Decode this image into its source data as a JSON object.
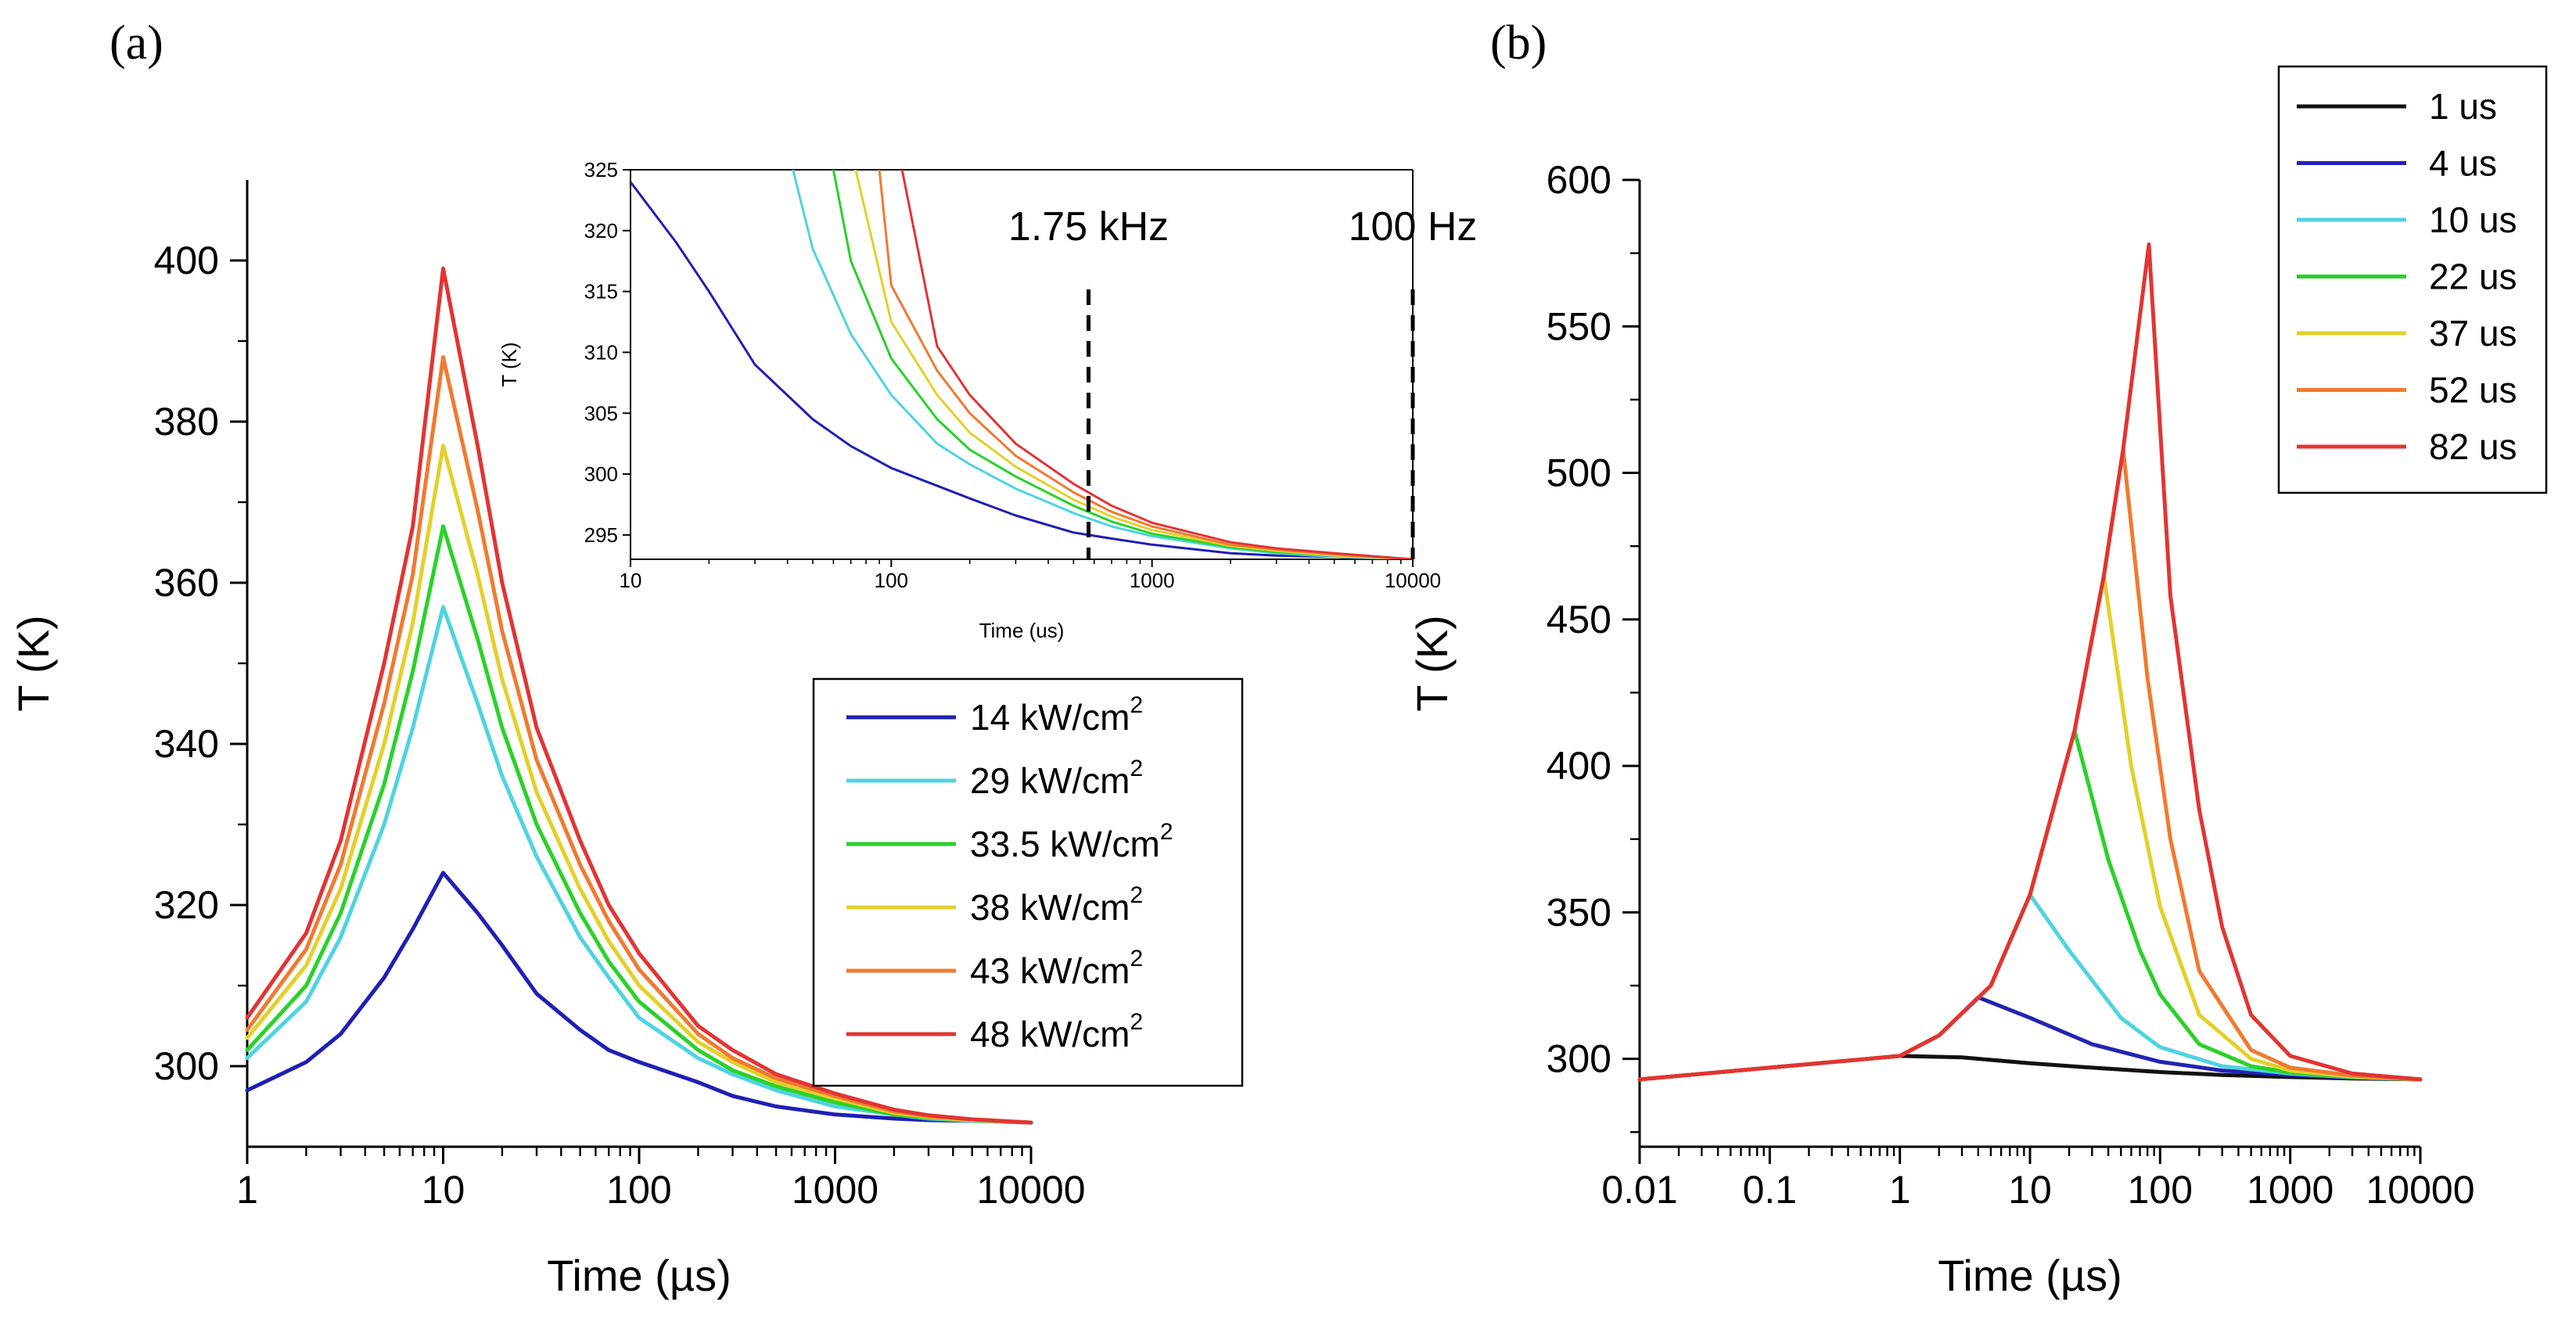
{
  "figure": {
    "panels": [
      "(a)",
      "(b)"
    ]
  },
  "chart_data": [
    {
      "type": "line",
      "panel": "(a)",
      "title": "",
      "xlabel": "Time (µs)",
      "ylabel": "T (K)",
      "xscale": "log",
      "xlim": [
        1,
        10000
      ],
      "ylim": [
        290,
        410
      ],
      "xticks": [
        1,
        10,
        100,
        1000,
        10000
      ],
      "xtick_labels": [
        "1",
        "10",
        "100",
        "1000",
        "10000"
      ],
      "yticks": [
        300,
        320,
        340,
        360,
        380,
        400
      ],
      "ytick_labels": [
        "300",
        "320",
        "340",
        "360",
        "380",
        "400"
      ],
      "legend_position": "center-right",
      "series": [
        {
          "name": "14 kW/cm²",
          "label_base": "14 kW/cm",
          "label_sup": "2",
          "color": "#1f1fb4",
          "x": [
            1,
            2,
            3,
            5,
            7,
            10,
            15,
            20,
            30,
            50,
            70,
            100,
            200,
            300,
            500,
            1000,
            2000,
            3000,
            5000,
            10000
          ],
          "y": [
            297,
            300.5,
            304,
            311,
            317,
            324,
            319,
            315,
            309,
            304.5,
            302,
            300.5,
            298,
            296.3,
            295,
            294,
            293.5,
            293.3,
            293.2,
            293
          ]
        },
        {
          "name": "29 kW/cm²",
          "label_base": "29 kW/cm",
          "label_sup": "2",
          "color": "#4fd3e0",
          "x": [
            1,
            2,
            3,
            5,
            7,
            10,
            15,
            20,
            30,
            50,
            70,
            100,
            200,
            300,
            500,
            1000,
            2000,
            3000,
            5000,
            10000
          ],
          "y": [
            301,
            308,
            316,
            330,
            342,
            357,
            345,
            336,
            326,
            316,
            311,
            306,
            301,
            299,
            297,
            295,
            294,
            293.5,
            293.2,
            293
          ]
        },
        {
          "name": "33.5 kW/cm²",
          "label_base": "33.5 kW/cm",
          "label_sup": "2",
          "color": "#2ad12a",
          "x": [
            1,
            2,
            3,
            5,
            7,
            10,
            15,
            20,
            30,
            50,
            70,
            100,
            200,
            300,
            500,
            1000,
            2000,
            3000,
            5000,
            10000
          ],
          "y": [
            302,
            310,
            319,
            335,
            349,
            367,
            353,
            342,
            330,
            319,
            313,
            308,
            302,
            299.5,
            297.5,
            295.5,
            294,
            293.6,
            293.3,
            293
          ]
        },
        {
          "name": "38 kW/cm²",
          "label_base": "38 kW/cm",
          "label_sup": "2",
          "color": "#e3d02a",
          "x": [
            1,
            2,
            3,
            5,
            7,
            10,
            15,
            20,
            30,
            50,
            70,
            100,
            200,
            300,
            500,
            1000,
            2000,
            3000,
            5000,
            10000
          ],
          "y": [
            303.5,
            312.5,
            322,
            340,
            355,
            377,
            361,
            348,
            334,
            322,
            315.5,
            310,
            303,
            300.5,
            298,
            296,
            294.2,
            293.7,
            293.3,
            293
          ]
        },
        {
          "name": "43 kW/cm²",
          "label_base": "43 kW/cm",
          "label_sup": "2",
          "color": "#f07a30",
          "x": [
            1,
            2,
            3,
            5,
            7,
            10,
            15,
            20,
            30,
            50,
            70,
            100,
            200,
            300,
            500,
            1000,
            2000,
            3000,
            5000,
            10000
          ],
          "y": [
            304.5,
            314.5,
            325,
            345,
            361,
            388,
            369,
            354,
            338,
            325,
            318,
            312,
            304,
            301,
            298.5,
            296.3,
            294.4,
            293.8,
            293.4,
            293
          ]
        },
        {
          "name": "48 kW/cm²",
          "label_base": "48 kW/cm",
          "label_sup": "2",
          "color": "#e23434",
          "x": [
            1,
            2,
            3,
            5,
            7,
            10,
            15,
            20,
            30,
            50,
            70,
            100,
            200,
            300,
            500,
            1000,
            2000,
            3000,
            5000,
            10000
          ],
          "y": [
            306,
            316.5,
            328,
            350,
            367,
            399,
            377,
            360,
            342,
            328,
            320,
            314,
            305,
            302,
            299,
            296.6,
            294.6,
            293.9,
            293.4,
            293
          ]
        }
      ]
    },
    {
      "type": "line",
      "panel": "(a) inset",
      "title": "",
      "xlabel": "Time (us)",
      "ylabel": "T (K)",
      "xscale": "log",
      "xlim": [
        10,
        10000
      ],
      "ylim": [
        293,
        325
      ],
      "xticks": [
        10,
        100,
        1000,
        10000
      ],
      "xtick_labels": [
        "10",
        "100",
        "1000",
        "10000"
      ],
      "yticks": [
        295,
        300,
        305,
        310,
        315,
        320,
        325
      ],
      "ytick_labels": [
        "295",
        "300",
        "305",
        "310",
        "315",
        "320",
        "325"
      ],
      "annotations": [
        {
          "text": "1.75 kHz",
          "x": 571
        },
        {
          "text": "100 Hz",
          "x": 10000
        }
      ],
      "series": [
        {
          "name": "14 kW/cm²",
          "color": "#1f1fb4",
          "x": [
            10,
            15,
            20,
            30,
            50,
            70,
            100,
            200,
            300,
            500,
            700,
            1000,
            2000,
            3000,
            5000,
            10000
          ],
          "y": [
            324,
            319,
            315,
            309,
            304.5,
            302.3,
            300.5,
            298,
            296.6,
            295.2,
            294.7,
            294.2,
            293.5,
            293.3,
            293.2,
            293
          ]
        },
        {
          "name": "29 kW/cm²",
          "color": "#4fd3e0",
          "x": [
            42,
            50,
            70,
            100,
            150,
            200,
            300,
            500,
            700,
            1000,
            2000,
            3000,
            5000,
            10000
          ],
          "y": [
            325,
            318.5,
            311.5,
            306.5,
            302.5,
            300.8,
            298.8,
            296.8,
            295.7,
            294.9,
            293.9,
            293.5,
            293.2,
            293
          ]
        },
        {
          "name": "33.5 kW/cm²",
          "color": "#2ad12a",
          "x": [
            60,
            70,
            100,
            150,
            200,
            300,
            500,
            700,
            1000,
            2000,
            3000,
            5000,
            10000
          ],
          "y": [
            325,
            317.5,
            309.5,
            304.5,
            302,
            299.8,
            297.4,
            296.1,
            295.1,
            294,
            293.6,
            293.3,
            293
          ]
        },
        {
          "name": "38 kW/cm²",
          "color": "#e3d02a",
          "x": [
            73,
            100,
            150,
            200,
            300,
            500,
            700,
            1000,
            2000,
            3000,
            5000,
            10000
          ],
          "y": [
            325,
            312.5,
            306.5,
            303.4,
            300.6,
            297.9,
            296.5,
            295.4,
            294.1,
            293.7,
            293.3,
            293
          ]
        },
        {
          "name": "43 kW/cm²",
          "color": "#f07a30",
          "x": [
            90,
            100,
            150,
            200,
            300,
            500,
            700,
            1000,
            2000,
            3000,
            5000,
            10000
          ],
          "y": [
            325,
            315.5,
            308.5,
            305,
            301.5,
            298.5,
            296.9,
            295.7,
            294.2,
            293.8,
            293.4,
            293
          ]
        },
        {
          "name": "48 kW/cm²",
          "color": "#e23434",
          "x": [
            110,
            150,
            200,
            300,
            500,
            700,
            1000,
            2000,
            3000,
            5000,
            10000
          ],
          "y": [
            325,
            310.5,
            306.5,
            302.5,
            299.2,
            297.4,
            296,
            294.4,
            293.9,
            293.5,
            293
          ]
        }
      ]
    },
    {
      "type": "line",
      "panel": "(b)",
      "title": "",
      "xlabel": "Time (µs)",
      "ylabel": "T (K)",
      "xscale": "log",
      "xlim": [
        0.01,
        10000
      ],
      "ylim": [
        270,
        600
      ],
      "xticks": [
        0.01,
        0.1,
        1,
        10,
        100,
        1000,
        10000
      ],
      "xtick_labels": [
        "0.01",
        "0.1",
        "1",
        "10",
        "100",
        "1000",
        "10000"
      ],
      "yticks": [
        300,
        350,
        400,
        450,
        500,
        550,
        600
      ],
      "ytick_labels": [
        "300",
        "350",
        "400",
        "450",
        "500",
        "550",
        "600"
      ],
      "legend_position": "top-right",
      "series": [
        {
          "name": "1 us",
          "color": "#111111",
          "x": [
            0.01,
            0.1,
            1,
            3,
            10,
            30,
            100,
            300,
            1000,
            3000,
            10000
          ],
          "y": [
            293,
            297,
            301,
            300.5,
            298.5,
            297,
            295.5,
            294.5,
            293.8,
            293.3,
            293
          ]
        },
        {
          "name": "4 us",
          "color": "#2323b4",
          "x": [
            0.01,
            0.1,
            1,
            2,
            4,
            10,
            30,
            100,
            300,
            1000,
            3000,
            10000
          ],
          "y": [
            293,
            297,
            301,
            308,
            321,
            314,
            305,
            299,
            296,
            294.5,
            293.6,
            293
          ]
        },
        {
          "name": "10 us",
          "color": "#4fd3e0",
          "x": [
            0.01,
            0.1,
            1,
            2,
            5,
            10,
            20,
            50,
            100,
            300,
            1000,
            3000,
            10000
          ],
          "y": [
            293,
            297,
            301,
            308,
            325,
            356,
            337,
            314,
            304,
            297.5,
            295,
            293.7,
            293
          ]
        },
        {
          "name": "22 us",
          "color": "#2ad12a",
          "x": [
            0.01,
            0.1,
            1,
            2,
            5,
            10,
            22,
            40,
            70,
            100,
            200,
            500,
            1000,
            3000,
            10000
          ],
          "y": [
            293,
            297,
            301,
            308,
            325,
            356,
            412,
            368,
            337,
            322,
            305,
            297.5,
            295.3,
            293.8,
            293
          ]
        },
        {
          "name": "37 us",
          "color": "#e3d02a",
          "x": [
            0.01,
            0.1,
            1,
            2,
            5,
            10,
            22,
            37,
            60,
            100,
            200,
            500,
            1000,
            3000,
            10000
          ],
          "y": [
            293,
            297,
            301,
            308,
            325,
            356,
            412,
            465,
            400,
            352,
            315,
            300,
            296,
            294,
            293
          ]
        },
        {
          "name": "52 us",
          "color": "#f07a30",
          "x": [
            0.01,
            0.1,
            1,
            2,
            5,
            10,
            22,
            37,
            52,
            80,
            120,
            200,
            500,
            1000,
            3000,
            10000
          ],
          "y": [
            293,
            297,
            301,
            308,
            325,
            356,
            412,
            465,
            508,
            430,
            375,
            330,
            303,
            297,
            294.3,
            293
          ]
        },
        {
          "name": "82 us",
          "color": "#e23434",
          "x": [
            0.01,
            0.1,
            1,
            2,
            5,
            10,
            22,
            37,
            52,
            82,
            120,
            200,
            300,
            500,
            1000,
            3000,
            10000
          ],
          "y": [
            293,
            297,
            301,
            308,
            325,
            356,
            412,
            465,
            508,
            578,
            458,
            385,
            345,
            315,
            301,
            295,
            293
          ]
        }
      ]
    }
  ]
}
